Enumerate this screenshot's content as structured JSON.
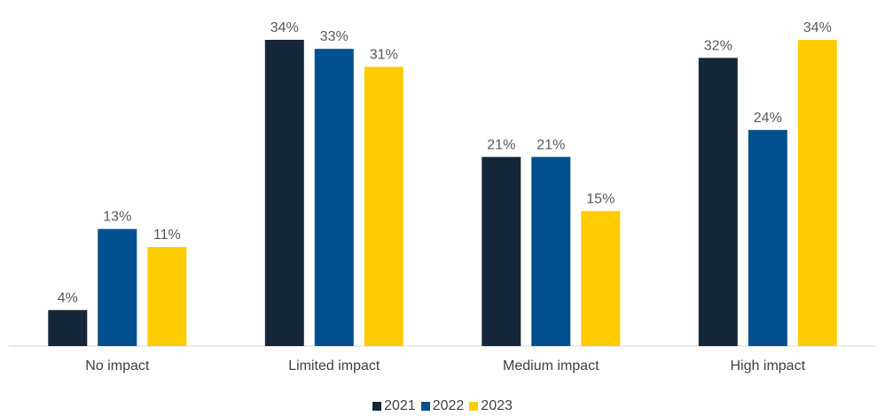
{
  "chart_data": {
    "type": "bar",
    "categories": [
      "No impact",
      "Limited impact",
      "Medium impact",
      "High impact"
    ],
    "series": [
      {
        "name": "2021",
        "color": "#16263a",
        "values": [
          4,
          34,
          21,
          32
        ],
        "labels": [
          "4%",
          "34%",
          "21%",
          "32%"
        ]
      },
      {
        "name": "2022",
        "color": "#004f8e",
        "values": [
          13,
          33,
          21,
          24
        ],
        "labels": [
          "13%",
          "33%",
          "21%",
          "24%"
        ]
      },
      {
        "name": "2023",
        "color": "#ffcc00",
        "values": [
          11,
          31,
          15,
          34
        ],
        "labels": [
          "11%",
          "31%",
          "15%",
          "34%"
        ]
      }
    ],
    "ylim": [
      0,
      34
    ],
    "legend_position": "bottom",
    "grid": false,
    "title": "",
    "xlabel": "",
    "ylabel": ""
  }
}
